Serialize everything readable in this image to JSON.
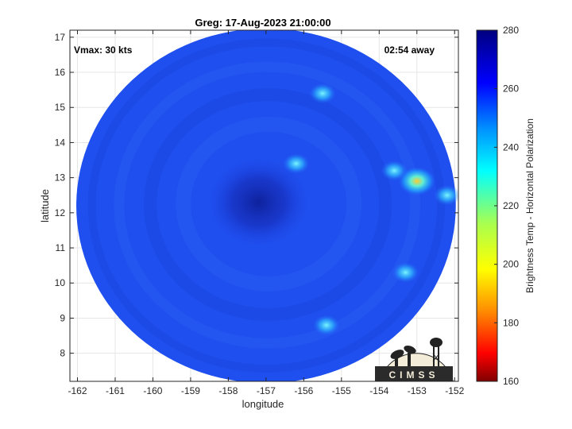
{
  "chart_data": {
    "type": "heatmap",
    "title": "Greg: 17-Aug-2023 21:00:00",
    "xlabel": "longitude",
    "ylabel": "latitude",
    "xlim": [
      -162.2,
      -151.9
    ],
    "ylim": [
      7.2,
      17.2
    ],
    "xticks": [
      -162,
      -161,
      -160,
      -159,
      -158,
      -157,
      -156,
      -155,
      -154,
      -153,
      -152
    ],
    "yticks": [
      8,
      9,
      10,
      11,
      12,
      13,
      14,
      15,
      16,
      17
    ],
    "grid": true,
    "annotations": {
      "vmax": "Vmax: 30 kts",
      "away": "02:54 away"
    },
    "colorbar": {
      "label": "Brightness Temp - Horizontal Polarization",
      "min": 160,
      "max": 280,
      "ticks": [
        160,
        180,
        200,
        220,
        240,
        260,
        280
      ],
      "colormap": "parula",
      "stops": [
        "#3e26a8",
        "#4655f1",
        "#2c85fa",
        "#15a9e0",
        "#2bbbb2",
        "#6ac66e",
        "#c4c03c",
        "#fbbf3c",
        "#f9e41e"
      ]
    },
    "swath": {
      "center": [
        -157.0,
        12.2
      ],
      "radius_lat": 5.05,
      "background_value": 262,
      "features": [
        {
          "lon": -157.2,
          "lat": 12.3,
          "value": 275,
          "label": "eye"
        },
        {
          "lon": -156.2,
          "lat": 13.4,
          "value": 252
        },
        {
          "lon": -153.0,
          "lat": 12.9,
          "value": 228
        },
        {
          "lon": -152.2,
          "lat": 12.5,
          "value": 238
        },
        {
          "lon": -153.6,
          "lat": 13.2,
          "value": 248
        },
        {
          "lon": -155.4,
          "lat": 8.8,
          "value": 245
        },
        {
          "lon": -153.3,
          "lat": 10.3,
          "value": 250
        },
        {
          "lon": -155.5,
          "lat": 15.4,
          "value": 252
        }
      ]
    },
    "logo": "CIMSS"
  }
}
